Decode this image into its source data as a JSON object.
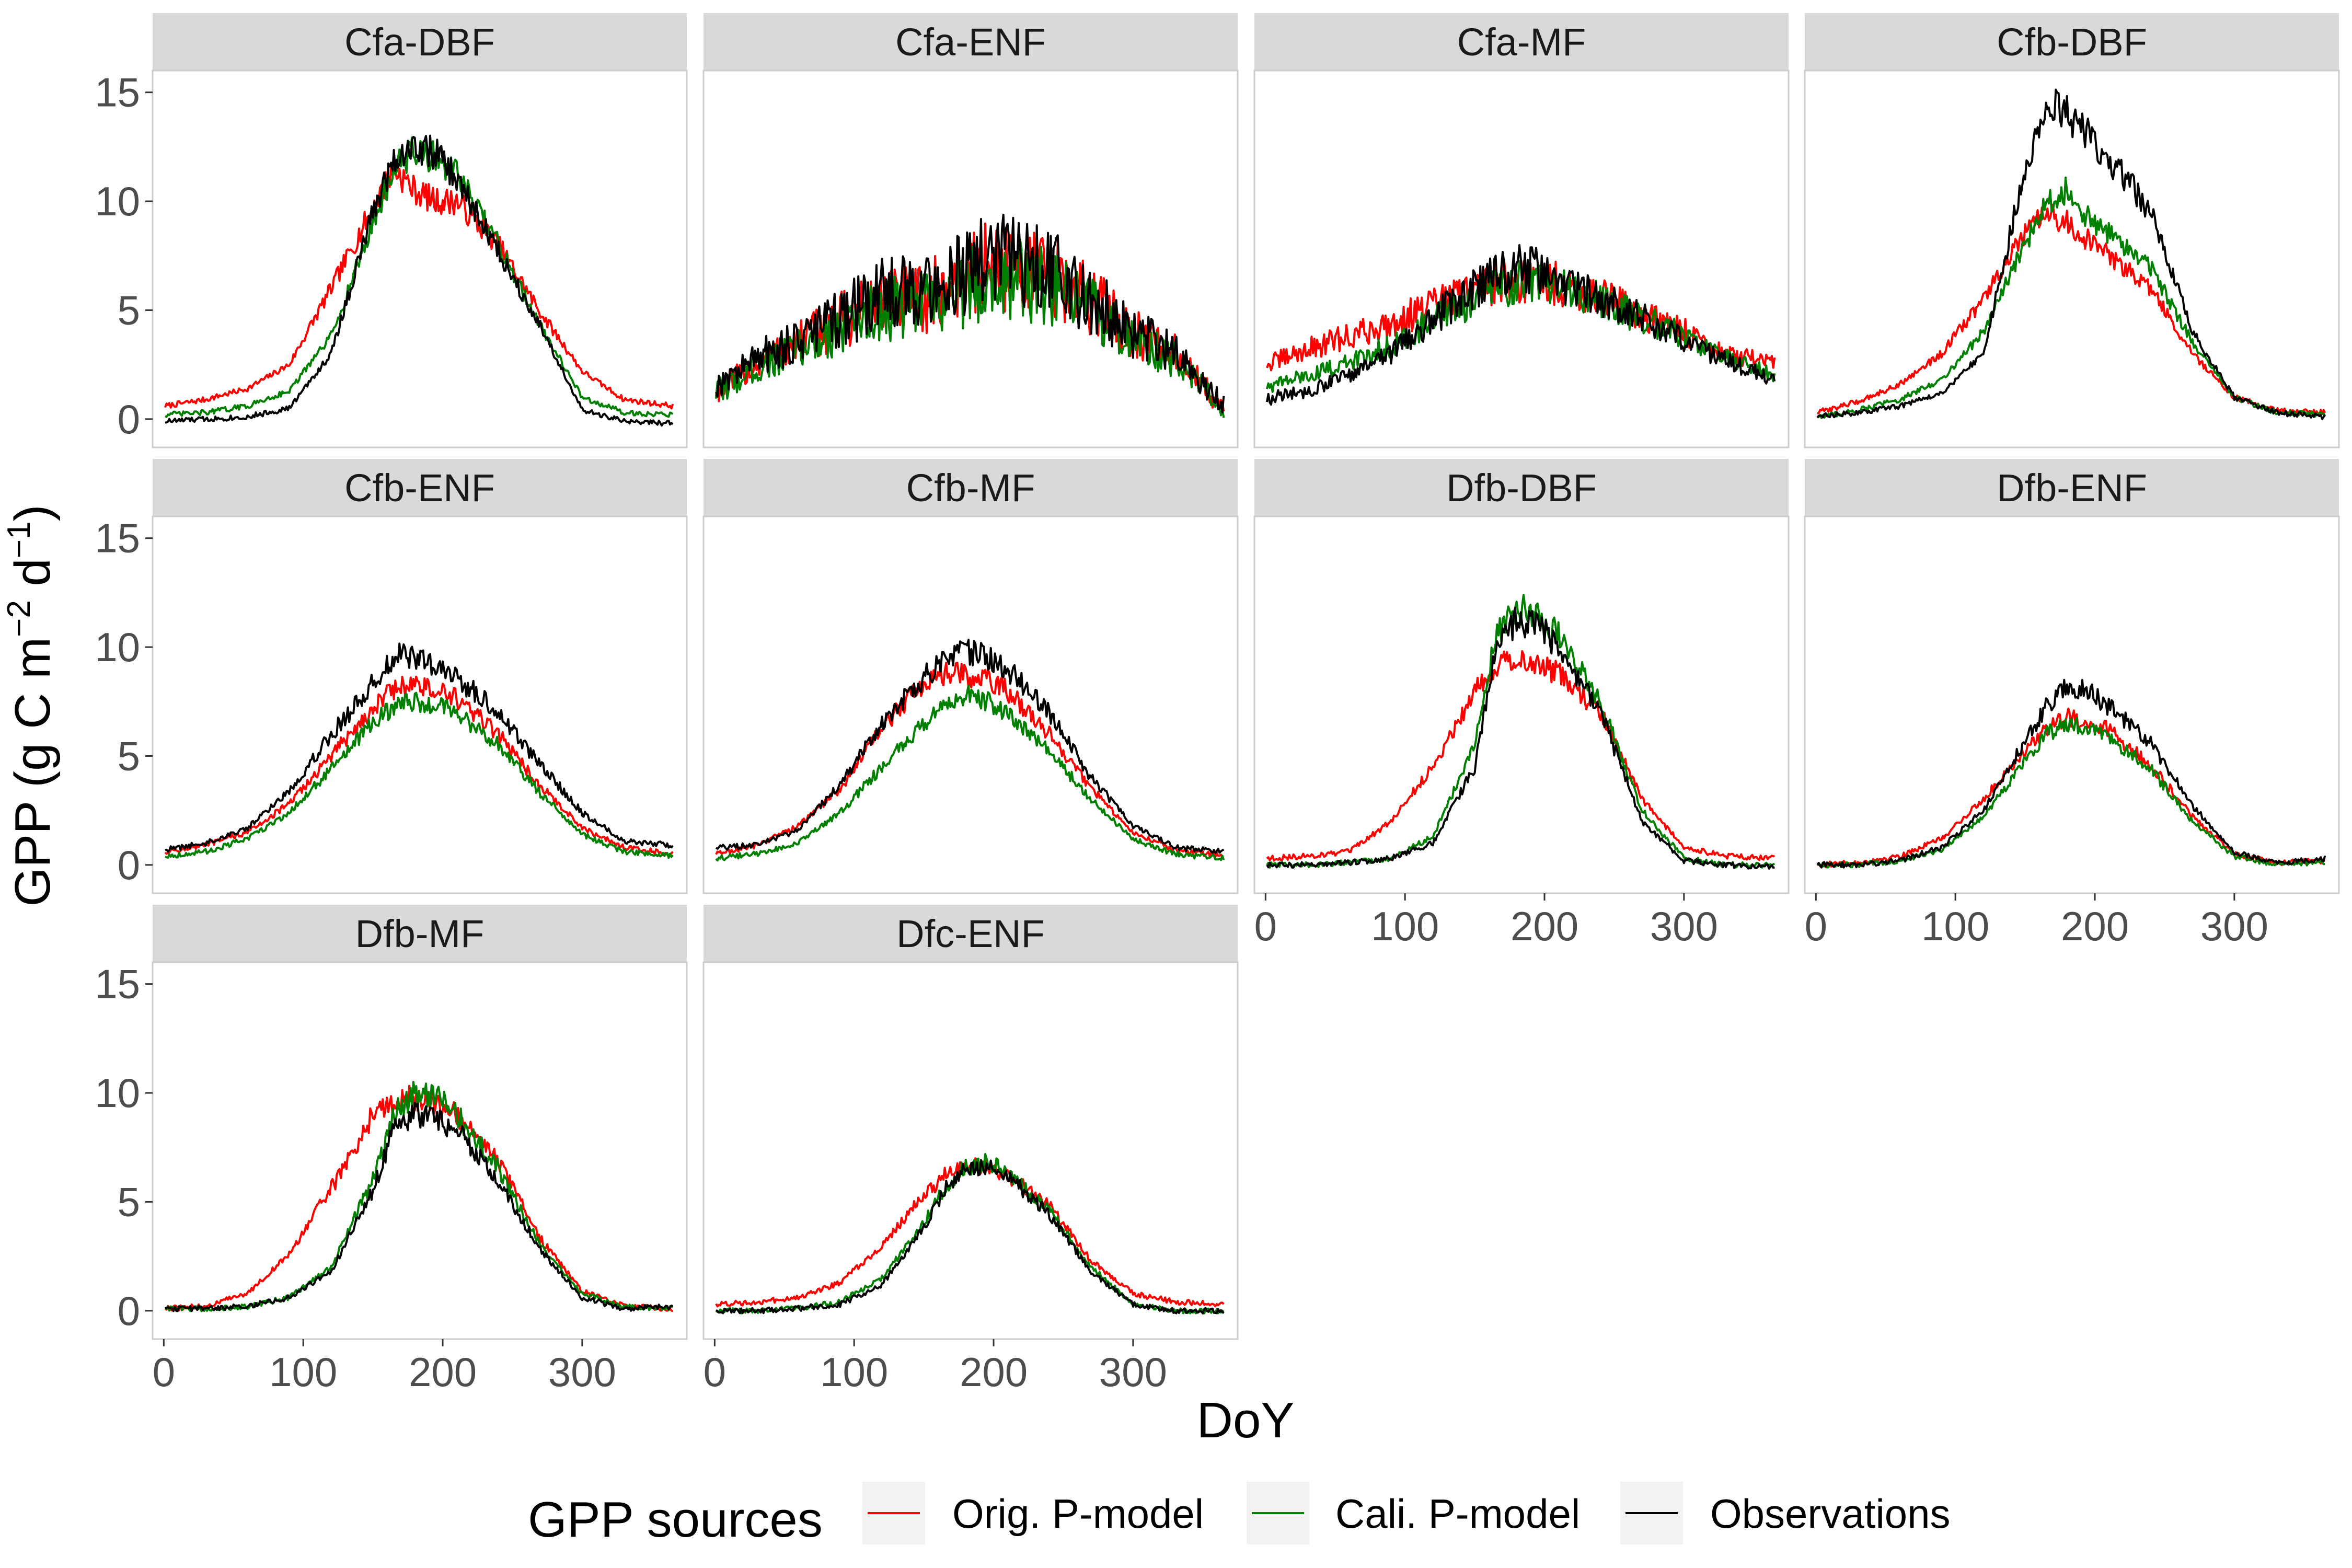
{
  "chart_data": {
    "type": "line",
    "xlabel": "DoY",
    "ylabel": "GPP (g C m⁻² d⁻¹)",
    "ylabel_parts": {
      "main": "GPP (g C m",
      "sup1": "−2",
      "mid": " d",
      "sup2": "−1",
      "end": ")"
    },
    "xlim": [
      -8,
      375
    ],
    "ylim": [
      -1.3,
      16.0
    ],
    "x_ticks": [
      "0",
      "100",
      "200",
      "300"
    ],
    "x_tick_values": [
      0,
      100,
      200,
      300
    ],
    "y_ticks": [
      "0",
      "5",
      "10",
      "15"
    ],
    "y_tick_values": [
      0,
      5,
      10,
      15
    ],
    "grid": false,
    "legend_position": "bottom",
    "legend": {
      "title": "GPP sources",
      "entries": [
        "Orig. P-model",
        "Cali. P-model",
        "Observations"
      ]
    },
    "series_colors": [
      "#ff0000",
      "#008000",
      "#000000"
    ],
    "x_doy": [
      1,
      30,
      60,
      90,
      120,
      150,
      165,
      180,
      195,
      210,
      240,
      270,
      300,
      330,
      365
    ],
    "panels": [
      {
        "title": "Cfa-DBF",
        "series": [
          {
            "name": "Orig. P-model",
            "values": [
              0.6,
              0.9,
              1.4,
              2.5,
              6.0,
              9.7,
              11.5,
              10.5,
              10.0,
              10.0,
              8.0,
              4.9,
              2.2,
              0.9,
              0.6
            ]
          },
          {
            "name": "Cali. P-model",
            "values": [
              0.2,
              0.3,
              0.6,
              1.3,
              3.8,
              9.0,
              11.5,
              12.3,
              12.0,
              11.2,
              8.0,
              4.3,
              1.0,
              0.3,
              0.2
            ]
          },
          {
            "name": "Observations",
            "values": [
              -0.1,
              0.0,
              0.1,
              0.5,
              3.0,
              9.5,
              12.0,
              12.5,
              12.2,
              11.0,
              7.7,
              4.3,
              0.4,
              -0.1,
              -0.2
            ]
          }
        ]
      },
      {
        "title": "Cfa-ENF",
        "series": [
          {
            "name": "Orig. P-model",
            "values": [
              1.3,
              2.5,
              3.5,
              4.5,
              5.5,
              5.5,
              6.0,
              6.5,
              7.0,
              7.0,
              6.5,
              5.5,
              4.0,
              3.0,
              0.5
            ]
          },
          {
            "name": "Cali. P-model",
            "values": [
              1.2,
              2.3,
              3.2,
              4.2,
              5.0,
              5.2,
              5.5,
              6.0,
              6.5,
              6.5,
              6.0,
              5.0,
              3.6,
              2.7,
              0.5
            ]
          },
          {
            "name": "Observations",
            "values": [
              1.5,
              2.8,
              3.6,
              4.6,
              5.7,
              6.0,
              6.2,
              6.8,
              7.3,
              7.5,
              6.8,
              5.5,
              4.0,
              3.0,
              0.6
            ]
          }
        ]
      },
      {
        "title": "Cfa-MF",
        "series": [
          {
            "name": "Orig. P-model",
            "values": [
              2.5,
              3.2,
              3.8,
              4.4,
              5.2,
              6.0,
              6.3,
              6.4,
              6.3,
              6.2,
              5.6,
              4.8,
              4.0,
              3.0,
              2.5
            ]
          },
          {
            "name": "Cali. P-model",
            "values": [
              1.5,
              2.0,
              2.6,
              3.4,
              4.5,
              5.5,
              6.0,
              6.3,
              6.2,
              6.0,
              5.4,
              4.6,
              3.8,
              2.8,
              2.0
            ]
          },
          {
            "name": "Observations",
            "values": [
              0.9,
              1.3,
              2.0,
              3.0,
              4.6,
              6.0,
              6.6,
              7.0,
              6.8,
              6.4,
              5.5,
              4.6,
              3.7,
              2.7,
              1.8
            ]
          }
        ]
      },
      {
        "title": "Cfb-DBF",
        "series": [
          {
            "name": "Orig. P-model",
            "values": [
              0.3,
              0.8,
              1.6,
              3.0,
              5.5,
              8.5,
              9.4,
              9.0,
              8.2,
              7.5,
              6.0,
              3.0,
              1.0,
              0.4,
              0.3
            ]
          },
          {
            "name": "Cali. P-model",
            "values": [
              0.1,
              0.4,
              0.9,
              1.8,
              4.0,
              8.0,
              10.0,
              10.5,
              9.2,
              8.5,
              7.0,
              3.5,
              1.0,
              0.3,
              0.2
            ]
          },
          {
            "name": "Observations",
            "values": [
              0.1,
              0.3,
              0.6,
              1.2,
              3.0,
              11.5,
              14.5,
              14.0,
              13.0,
              12.0,
              9.5,
              4.0,
              1.0,
              0.3,
              0.1
            ]
          }
        ]
      },
      {
        "title": "Cfb-ENF",
        "series": [
          {
            "name": "Orig. P-model",
            "values": [
              0.6,
              0.9,
              1.5,
              2.8,
              5.0,
              7.2,
              8.1,
              8.3,
              8.0,
              7.6,
              6.0,
              3.6,
              1.7,
              0.8,
              0.5
            ]
          },
          {
            "name": "Cali. P-model",
            "values": [
              0.4,
              0.6,
              1.2,
              2.4,
              4.4,
              6.5,
              7.3,
              7.5,
              7.3,
              7.0,
              5.5,
              3.3,
              1.4,
              0.6,
              0.4
            ]
          },
          {
            "name": "Observations",
            "values": [
              0.7,
              1.0,
              1.7,
              3.4,
              6.0,
              8.3,
              9.6,
              9.6,
              9.0,
              8.6,
              7.0,
              4.6,
              2.4,
              1.1,
              0.9
            ]
          }
        ]
      },
      {
        "title": "Cfb-MF",
        "series": [
          {
            "name": "Orig. P-model",
            "values": [
              0.5,
              0.9,
              1.8,
              3.5,
              6.3,
              8.4,
              8.8,
              8.7,
              8.5,
              8.0,
              6.0,
              3.5,
              1.5,
              0.7,
              0.4
            ]
          },
          {
            "name": "Cali. P-model",
            "values": [
              0.3,
              0.5,
              1.0,
              2.4,
              4.5,
              6.5,
              7.2,
              7.8,
              7.5,
              7.0,
              5.2,
              3.0,
              1.2,
              0.5,
              0.3
            ]
          },
          {
            "name": "Observations",
            "values": [
              0.8,
              0.9,
              1.6,
              3.7,
              6.5,
              8.6,
              9.4,
              9.8,
              9.6,
              9.0,
              7.0,
              4.0,
              1.8,
              0.8,
              0.6
            ]
          }
        ]
      },
      {
        "title": "Dfb-DBF",
        "series": [
          {
            "name": "Orig. P-model",
            "values": [
              0.3,
              0.4,
              0.6,
              2.0,
              4.5,
              8.0,
              9.2,
              9.5,
              9.2,
              8.8,
              7.0,
              3.0,
              0.8,
              0.4,
              0.3
            ]
          },
          {
            "name": "Cali. P-model",
            "values": [
              0.0,
              0.0,
              0.1,
              0.3,
              1.3,
              5.5,
              10.5,
              11.8,
              11.5,
              10.5,
              7.5,
              2.5,
              0.3,
              0.0,
              0.0
            ]
          },
          {
            "name": "Observations",
            "values": [
              0.0,
              0.0,
              0.1,
              0.3,
              1.0,
              4.5,
              10.0,
              11.2,
              11.0,
              10.0,
              7.0,
              2.0,
              0.2,
              0.0,
              -0.1
            ]
          }
        ]
      },
      {
        "title": "Dfb-ENF",
        "series": [
          {
            "name": "Orig. P-model",
            "values": [
              0.0,
              0.1,
              0.4,
              1.2,
              3.0,
              5.3,
              6.2,
              6.8,
              6.6,
              6.2,
              4.6,
              2.2,
              0.5,
              0.1,
              0.2
            ]
          },
          {
            "name": "Cali. P-model",
            "values": [
              0.0,
              0.0,
              0.2,
              0.7,
              2.2,
              4.8,
              6.0,
              6.5,
              6.3,
              5.9,
              4.4,
              2.0,
              0.4,
              0.0,
              0.1
            ]
          },
          {
            "name": "Observations",
            "values": [
              0.0,
              0.0,
              0.2,
              0.8,
              2.5,
              5.7,
              7.3,
              8.2,
              8.0,
              7.3,
              5.6,
              2.7,
              0.6,
              0.1,
              0.3
            ]
          }
        ]
      },
      {
        "title": "Dfb-MF",
        "series": [
          {
            "name": "Orig. P-model",
            "values": [
              0.1,
              0.2,
              0.8,
              2.6,
              5.6,
              9.0,
              9.6,
              9.8,
              9.5,
              9.0,
              6.8,
              3.3,
              0.9,
              0.2,
              0.1
            ]
          },
          {
            "name": "Cali. P-model",
            "values": [
              0.1,
              0.1,
              0.2,
              0.6,
              2.0,
              6.0,
              9.0,
              10.0,
              9.8,
              9.0,
              6.5,
              3.0,
              0.8,
              0.2,
              0.1
            ]
          },
          {
            "name": "Observations",
            "values": [
              0.1,
              0.1,
              0.2,
              0.6,
              1.8,
              5.5,
              8.4,
              9.0,
              8.8,
              8.3,
              6.0,
              2.8,
              0.6,
              0.1,
              0.2
            ]
          }
        ]
      },
      {
        "title": "Dfc-ENF",
        "series": [
          {
            "name": "Orig. P-model",
            "values": [
              0.3,
              0.4,
              0.6,
              1.3,
              3.0,
              5.3,
              6.2,
              6.6,
              6.6,
              6.2,
              4.8,
              2.3,
              0.8,
              0.4,
              0.3
            ]
          },
          {
            "name": "Cali. P-model",
            "values": [
              0.0,
              0.0,
              0.1,
              0.4,
              1.5,
              4.0,
              5.7,
              6.6,
              6.8,
              6.4,
              4.6,
              2.0,
              0.3,
              0.0,
              0.0
            ]
          },
          {
            "name": "Observations",
            "values": [
              0.0,
              0.0,
              0.1,
              0.3,
              1.2,
              3.8,
              5.6,
              6.5,
              6.6,
              6.2,
              4.4,
              1.8,
              0.3,
              0.0,
              0.0
            ]
          }
        ]
      }
    ]
  }
}
